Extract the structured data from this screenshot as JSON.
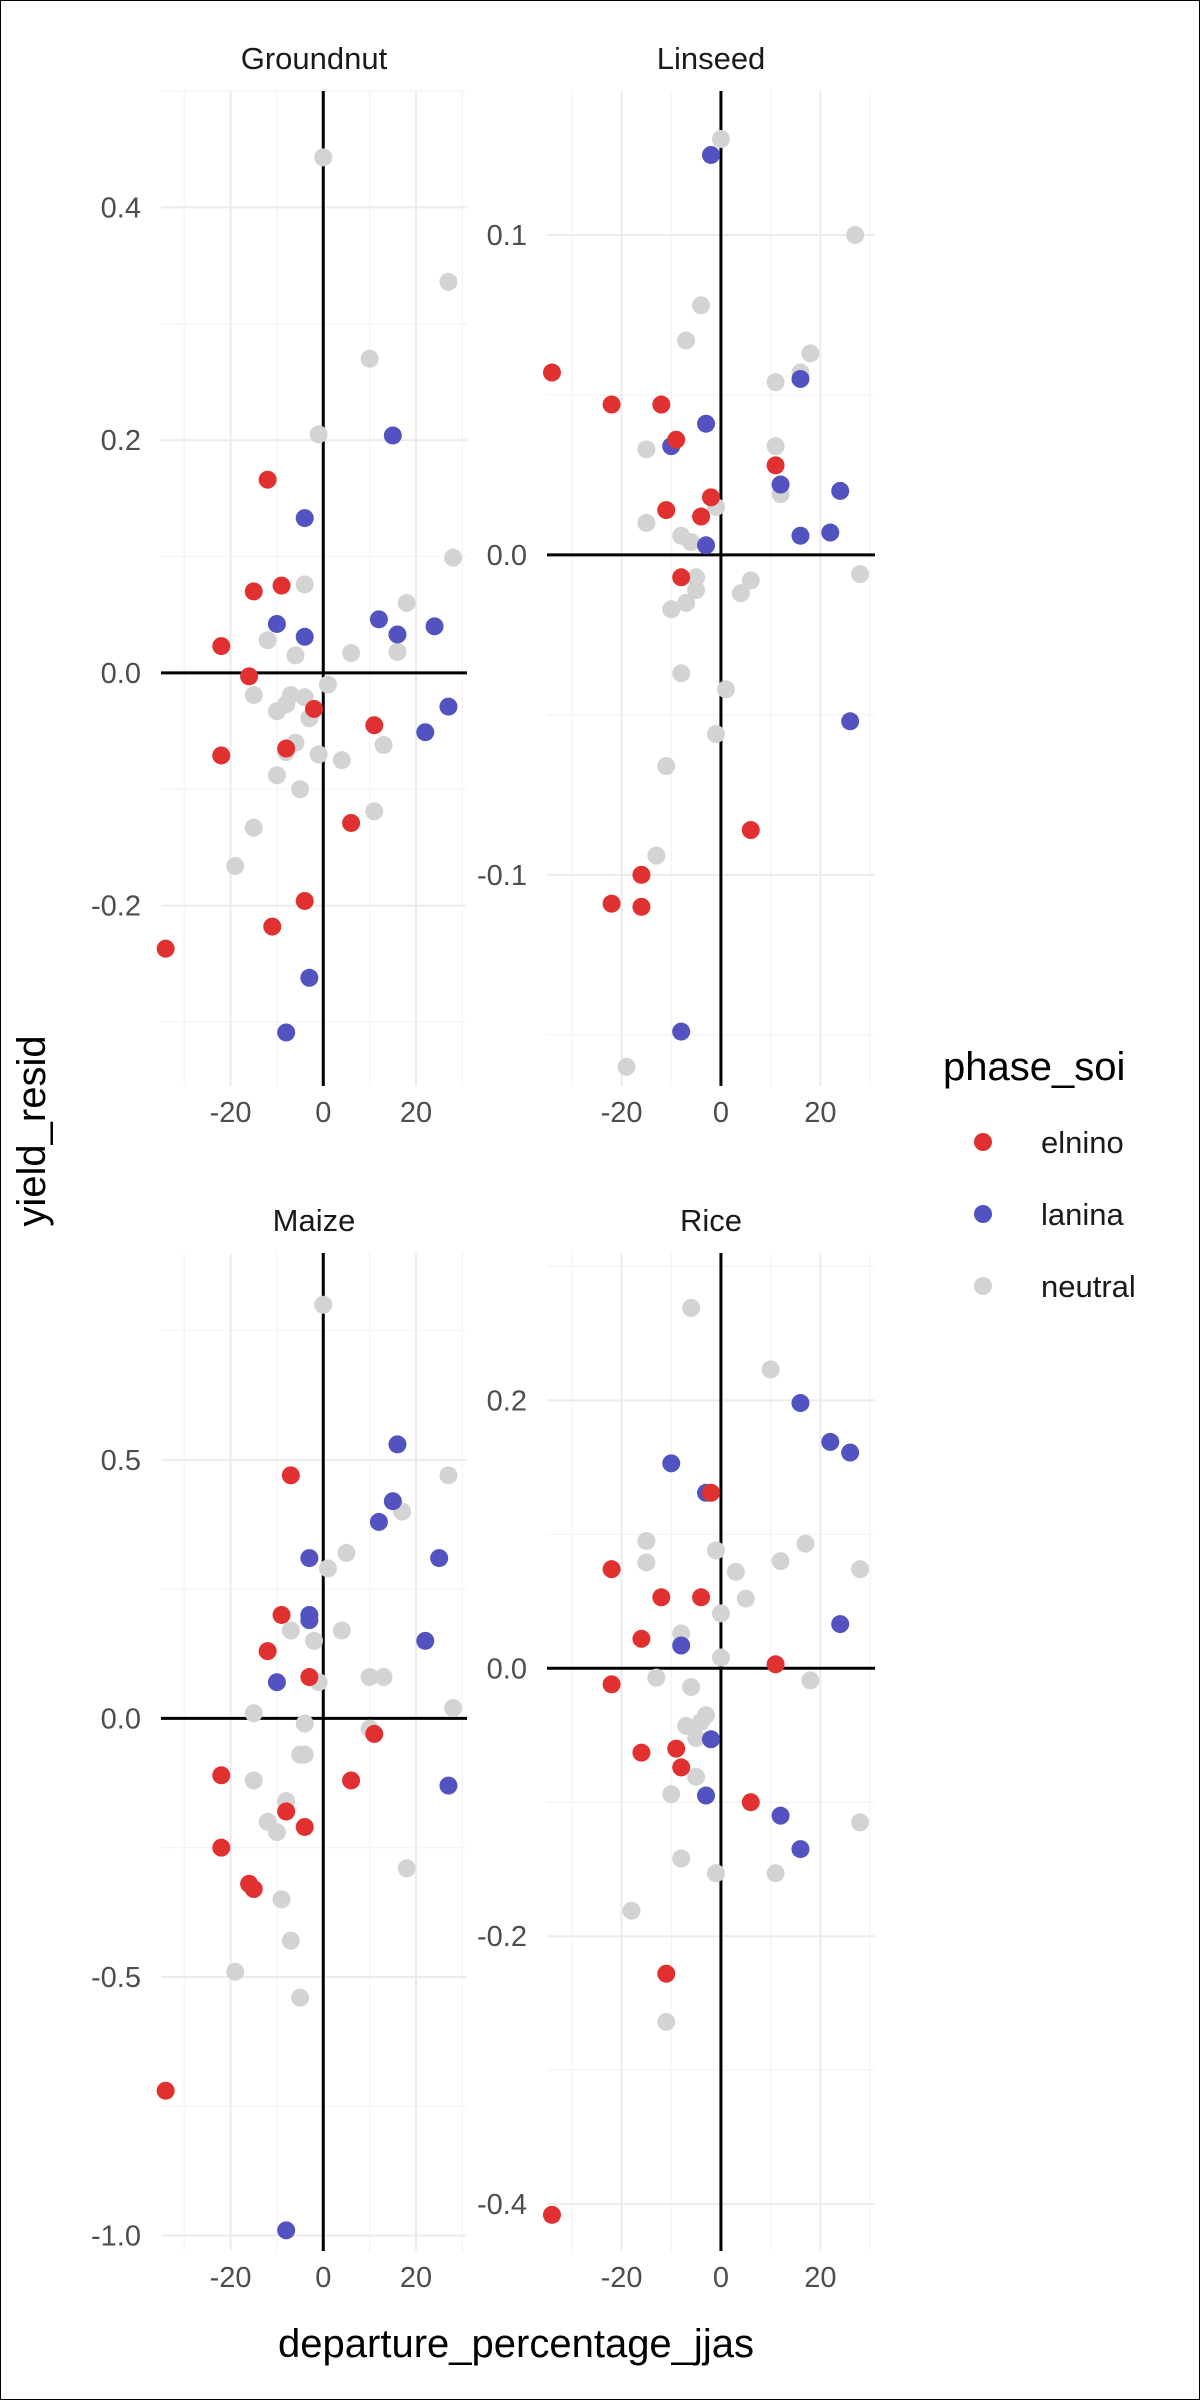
{
  "chart_data": {
    "type": "scatter",
    "facet_by": "crop",
    "xlabel": "departure_percentage_jjas",
    "ylabel": "yield_resid",
    "legend": {
      "title": "phase_soi",
      "placement": "right",
      "entries": [
        {
          "name": "elnino",
          "color": "#e03030"
        },
        {
          "name": "lanina",
          "color": "#5252c0"
        },
        {
          "name": "neutral",
          "color": "#d3d3d3"
        }
      ]
    },
    "x_ticks": [
      -20,
      0,
      20
    ],
    "x_tick_labels": [
      "-20",
      "0",
      "20"
    ],
    "xlim": [
      -35,
      31
    ],
    "reference_lines": {
      "x": 0,
      "y": 0
    },
    "panels": [
      {
        "title": "Groundnut",
        "ylim": [
          -0.355,
          0.5
        ],
        "y_ticks": [
          0.4,
          0.2,
          0.0,
          -0.2
        ],
        "y_tick_labels": [
          "0.4",
          "0.2",
          "0.0",
          "-0.2"
        ],
        "series": [
          {
            "name": "elnino",
            "points": [
              [
                -34,
                -0.237
              ],
              [
                -22,
                0.023
              ],
              [
                -22,
                -0.071
              ],
              [
                -16,
                -0.003
              ],
              [
                -15,
                0.07
              ],
              [
                -12,
                0.166
              ],
              [
                -11,
                -0.218
              ],
              [
                -9,
                0.075
              ],
              [
                -4,
                -0.196
              ],
              [
                -2,
                -0.031
              ],
              [
                11,
                -0.045
              ],
              [
                6,
                -0.129
              ],
              [
                -8,
                -0.065
              ]
            ]
          },
          {
            "name": "lanina",
            "points": [
              [
                -10,
                0.042
              ],
              [
                -4,
                0.133
              ],
              [
                -4,
                0.031
              ],
              [
                -3,
                -0.262
              ],
              [
                -8,
                -0.309
              ],
              [
                12,
                0.046
              ],
              [
                15,
                0.204
              ],
              [
                16,
                0.033
              ],
              [
                24,
                0.04
              ],
              [
                22,
                -0.051
              ],
              [
                27,
                -0.029
              ]
            ]
          },
          {
            "name": "neutral",
            "points": [
              [
                0,
                0.443
              ],
              [
                27,
                0.336
              ],
              [
                10,
                0.27
              ],
              [
                -1,
                0.205
              ],
              [
                28,
                0.099
              ],
              [
                18,
                0.06
              ],
              [
                -4,
                0.076
              ],
              [
                16,
                0.018
              ],
              [
                6,
                0.017
              ],
              [
                -12,
                0.028
              ],
              [
                -6,
                0.015
              ],
              [
                -15,
                -0.019
              ],
              [
                -7,
                -0.019
              ],
              [
                -4,
                -0.021
              ],
              [
                -8,
                -0.027
              ],
              [
                -10,
                -0.033
              ],
              [
                1,
                -0.01
              ],
              [
                -3,
                -0.039
              ],
              [
                -6,
                -0.06
              ],
              [
                -8,
                -0.068
              ],
              [
                -1,
                -0.07
              ],
              [
                4,
                -0.075
              ],
              [
                13,
                -0.062
              ],
              [
                -10,
                -0.088
              ],
              [
                -5,
                -0.1
              ],
              [
                11,
                -0.119
              ],
              [
                -15,
                -0.133
              ],
              [
                -19,
                -0.166
              ]
            ]
          }
        ]
      },
      {
        "title": "Linseed",
        "ylim": [
          -0.166,
          0.145
        ],
        "y_ticks": [
          0.1,
          0.0,
          -0.1
        ],
        "y_tick_labels": [
          "0.1",
          "0.0",
          "-0.1"
        ],
        "series": [
          {
            "name": "elnino",
            "points": [
              [
                -34,
                0.057
              ],
              [
                -22,
                0.047
              ],
              [
                -12,
                0.047
              ],
              [
                -9,
                0.036
              ],
              [
                -11,
                0.014
              ],
              [
                -4,
                0.012
              ],
              [
                -2,
                0.018
              ],
              [
                -8,
                -0.007
              ],
              [
                11,
                0.028
              ],
              [
                6,
                -0.086
              ],
              [
                -16,
                -0.1
              ],
              [
                -22,
                -0.109
              ],
              [
                -16,
                -0.11
              ]
            ]
          },
          {
            "name": "lanina",
            "points": [
              [
                -2,
                0.125
              ],
              [
                -3,
                0.041
              ],
              [
                -10,
                0.034
              ],
              [
                -3,
                0.003
              ],
              [
                12,
                0.022
              ],
              [
                16,
                0.055
              ],
              [
                16,
                0.006
              ],
              [
                22,
                0.007
              ],
              [
                24,
                0.02
              ],
              [
                26,
                -0.052
              ],
              [
                -8,
                -0.149
              ]
            ]
          },
          {
            "name": "neutral",
            "points": [
              [
                0,
                0.13
              ],
              [
                27,
                0.1
              ],
              [
                -4,
                0.078
              ],
              [
                -7,
                0.067
              ],
              [
                18,
                0.063
              ],
              [
                16,
                0.057
              ],
              [
                11,
                0.054
              ],
              [
                -15,
                0.033
              ],
              [
                11,
                0.034
              ],
              [
                12,
                0.019
              ],
              [
                -1,
                0.015
              ],
              [
                -8,
                0.006
              ],
              [
                -6,
                0.004
              ],
              [
                -5,
                -0.007
              ],
              [
                -5,
                -0.011
              ],
              [
                6,
                -0.008
              ],
              [
                -15,
                0.01
              ],
              [
                4,
                -0.012
              ],
              [
                -7,
                -0.015
              ],
              [
                -10,
                -0.017
              ],
              [
                28,
                -0.006
              ],
              [
                -8,
                -0.037
              ],
              [
                1,
                -0.042
              ],
              [
                -1,
                -0.056
              ],
              [
                -11,
                -0.066
              ],
              [
                -13,
                -0.094
              ],
              [
                -19,
                -0.16
              ]
            ]
          }
        ]
      },
      {
        "title": "Maize",
        "ylim": [
          -1.03,
          0.9
        ],
        "y_ticks": [
          0.5,
          0.0,
          -0.5,
          -1.0
        ],
        "y_tick_labels": [
          "0.5",
          "0.0",
          "-0.5",
          "-1.0"
        ],
        "series": [
          {
            "name": "elnino",
            "points": [
              [
                -34,
                -0.72
              ],
              [
                -22,
                -0.11
              ],
              [
                -22,
                -0.25
              ],
              [
                -16,
                -0.32
              ],
              [
                -15,
                -0.33
              ],
              [
                -12,
                0.13
              ],
              [
                -9,
                0.2
              ],
              [
                -7,
                0.47
              ],
              [
                -3,
                0.08
              ],
              [
                -4,
                -0.21
              ],
              [
                11,
                -0.03
              ],
              [
                6,
                -0.12
              ],
              [
                -8,
                -0.18
              ]
            ]
          },
          {
            "name": "lanina",
            "points": [
              [
                -10,
                0.07
              ],
              [
                -3,
                0.2
              ],
              [
                -3,
                0.19
              ],
              [
                -3,
                0.31
              ],
              [
                12,
                0.38
              ],
              [
                15,
                0.42
              ],
              [
                16,
                0.53
              ],
              [
                22,
                0.15
              ],
              [
                25,
                0.31
              ],
              [
                27,
                -0.13
              ],
              [
                -8,
                -0.99
              ]
            ]
          },
          {
            "name": "neutral",
            "points": [
              [
                0,
                0.8
              ],
              [
                27,
                0.47
              ],
              [
                17,
                0.4
              ],
              [
                5,
                0.32
              ],
              [
                1,
                0.29
              ],
              [
                4,
                0.17
              ],
              [
                -7,
                0.17
              ],
              [
                -2,
                0.15
              ],
              [
                -1,
                0.07
              ],
              [
                10,
                0.08
              ],
              [
                13,
                0.08
              ],
              [
                -15,
                0.01
              ],
              [
                -4,
                -0.01
              ],
              [
                10,
                -0.02
              ],
              [
                -5,
                -0.07
              ],
              [
                -4,
                -0.07
              ],
              [
                -8,
                -0.16
              ],
              [
                -8,
                -0.18
              ],
              [
                -15,
                -0.12
              ],
              [
                -12,
                -0.2
              ],
              [
                -10,
                -0.22
              ],
              [
                -9,
                -0.35
              ],
              [
                -7,
                -0.43
              ],
              [
                -5,
                -0.54
              ],
              [
                -19,
                -0.49
              ],
              [
                18,
                -0.29
              ],
              [
                28,
                0.02
              ]
            ]
          }
        ]
      },
      {
        "title": "Rice",
        "ylim": [
          -0.435,
          0.31
        ],
        "y_ticks": [
          0.2,
          0.0,
          -0.2,
          -0.4
        ],
        "y_tick_labels": [
          "0.2",
          "0.0",
          "-0.2",
          "-0.4"
        ],
        "series": [
          {
            "name": "elnino",
            "points": [
              [
                -34,
                -0.408
              ],
              [
                -22,
                0.074
              ],
              [
                -22,
                -0.012
              ],
              [
                -16,
                0.022
              ],
              [
                -16,
                -0.063
              ],
              [
                -12,
                0.053
              ],
              [
                -9,
                -0.06
              ],
              [
                -8,
                -0.074
              ],
              [
                -4,
                0.053
              ],
              [
                -2,
                0.131
              ],
              [
                11,
                0.003
              ],
              [
                6,
                -0.1
              ],
              [
                -11,
                -0.228
              ]
            ]
          },
          {
            "name": "lanina",
            "points": [
              [
                -10,
                0.153
              ],
              [
                -3,
                0.131
              ],
              [
                -8,
                0.017
              ],
              [
                -2,
                -0.053
              ],
              [
                -3,
                -0.095
              ],
              [
                16,
                0.198
              ],
              [
                22,
                0.169
              ],
              [
                26,
                0.161
              ],
              [
                24,
                0.033
              ],
              [
                12,
                -0.11
              ],
              [
                16,
                -0.135
              ]
            ]
          },
          {
            "name": "neutral",
            "points": [
              [
                -6,
                0.269
              ],
              [
                10,
                0.223
              ],
              [
                -15,
                0.095
              ],
              [
                17,
                0.093
              ],
              [
                -15,
                0.079
              ],
              [
                -1,
                0.088
              ],
              [
                12,
                0.08
              ],
              [
                3,
                0.072
              ],
              [
                28,
                0.074
              ],
              [
                5,
                0.052
              ],
              [
                0,
                0.041
              ],
              [
                -8,
                0.026
              ],
              [
                0,
                0.008
              ],
              [
                -13,
                -0.007
              ],
              [
                18,
                -0.009
              ],
              [
                -6,
                -0.014
              ],
              [
                -3,
                -0.035
              ],
              [
                -4,
                -0.04
              ],
              [
                -7,
                -0.043
              ],
              [
                -5,
                -0.052
              ],
              [
                -5,
                -0.081
              ],
              [
                -10,
                -0.094
              ],
              [
                -8,
                -0.142
              ],
              [
                -1,
                -0.153
              ],
              [
                11,
                -0.153
              ],
              [
                28,
                -0.115
              ],
              [
                -18,
                -0.181
              ],
              [
                -11,
                -0.264
              ]
            ]
          }
        ]
      }
    ]
  }
}
